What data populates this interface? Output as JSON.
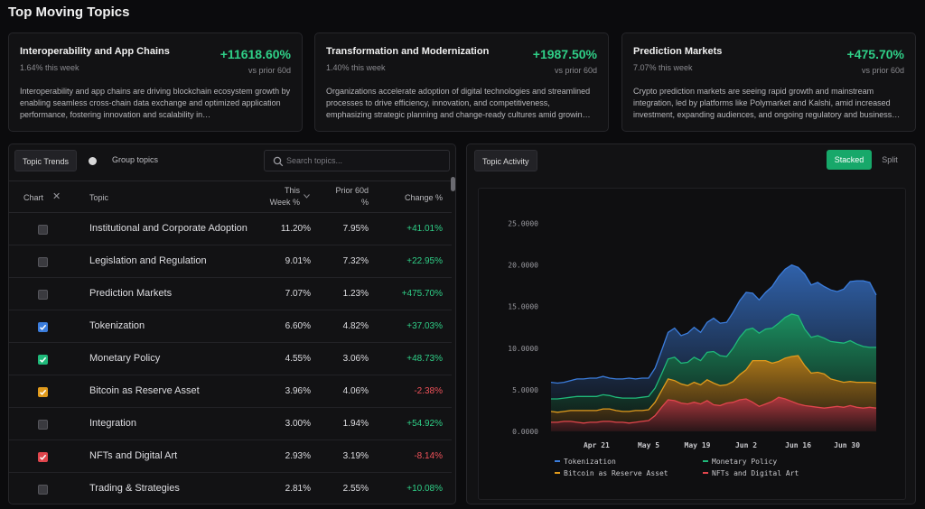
{
  "page": {
    "title": "Top Moving Topics"
  },
  "cards": [
    {
      "title": "Interoperability and App Chains",
      "sub": "1.64% this week",
      "change": "+11618.60%",
      "prior": "vs prior 60d",
      "desc": "Interoperability and app chains are driving blockchain ecosystem growth by enabling seamless cross-chain data exchange and optimized application performance, fostering innovation and scalability in…"
    },
    {
      "title": "Transformation and Modernization",
      "sub": "1.40% this week",
      "change": "+1987.50%",
      "prior": "vs prior 60d",
      "desc": "Organizations accelerate adoption of digital technologies and streamlined processes to drive efficiency, innovation, and competitiveness, emphasizing strategic planning and change-ready cultures amid growin…"
    },
    {
      "title": "Prediction Markets",
      "sub": "7.07% this week",
      "change": "+475.70%",
      "prior": "vs prior 60d",
      "desc": "Crypto prediction markets are seeing rapid growth and mainstream integration, led by platforms like Polymarket and Kalshi, amid increased investment, expanding audiences, and ongoing regulatory and business…"
    }
  ],
  "trends": {
    "tab_label": "Topic Trends",
    "group_label": "Group topics",
    "search_placeholder": "Search topics...",
    "headers": {
      "chart": "Chart",
      "topic": "Topic",
      "this_week_1": "This",
      "this_week_2": "Week %",
      "prior_1": "Prior 60d",
      "prior_2": "%",
      "change": "Change %"
    },
    "rows": [
      {
        "topic": "Institutional and Corporate Adoption",
        "week": "11.20%",
        "prior": "7.95%",
        "change": "+41.01%",
        "checked": false,
        "color": "",
        "dir": "pos"
      },
      {
        "topic": "Legislation and Regulation",
        "week": "9.01%",
        "prior": "7.32%",
        "change": "+22.95%",
        "checked": false,
        "color": "",
        "dir": "pos"
      },
      {
        "topic": "Prediction Markets",
        "week": "7.07%",
        "prior": "1.23%",
        "change": "+475.70%",
        "checked": false,
        "color": "",
        "dir": "pos"
      },
      {
        "topic": "Tokenization",
        "week": "6.60%",
        "prior": "4.82%",
        "change": "+37.03%",
        "checked": true,
        "color": "#3b7ddd",
        "dir": "pos"
      },
      {
        "topic": "Monetary Policy",
        "week": "4.55%",
        "prior": "3.06%",
        "change": "+48.73%",
        "checked": true,
        "color": "#1fb97a",
        "dir": "pos"
      },
      {
        "topic": "Bitcoin as Reserve Asset",
        "week": "3.96%",
        "prior": "4.06%",
        "change": "-2.38%",
        "checked": true,
        "color": "#e09a1c",
        "dir": "neg"
      },
      {
        "topic": "Integration",
        "week": "3.00%",
        "prior": "1.94%",
        "change": "+54.92%",
        "checked": false,
        "color": "",
        "dir": "pos"
      },
      {
        "topic": "NFTs and Digital Art",
        "week": "2.93%",
        "prior": "3.19%",
        "change": "-8.14%",
        "checked": true,
        "color": "#e0454c",
        "dir": "neg"
      },
      {
        "topic": "Trading & Strategies",
        "week": "2.81%",
        "prior": "2.55%",
        "change": "+10.08%",
        "checked": false,
        "color": "",
        "dir": "pos"
      }
    ]
  },
  "activity": {
    "tab_label": "Topic Activity",
    "stacked_label": "Stacked",
    "split_label": "Split"
  },
  "chart_data": {
    "type": "area",
    "stacked": true,
    "x_ticks": [
      "Apr 21",
      "May 5",
      "May 19",
      "Jun 2",
      "Jun 16",
      "Jun 30"
    ],
    "y_ticks": [
      "0.0000",
      "5.0000",
      "10.0000",
      "15.0000",
      "20.0000",
      "25.0000"
    ],
    "ylim": [
      0,
      27
    ],
    "grid": false,
    "legend_position": "bottom",
    "series": [
      {
        "name": "NFTs and Digital Art",
        "color": "#e0454c",
        "values": [
          1.1,
          1.1,
          1.2,
          1.2,
          1.1,
          1.0,
          1.1,
          1.1,
          1.2,
          1.2,
          1.1,
          1.1,
          1.0,
          1.1,
          1.2,
          1.3,
          1.9,
          2.9,
          3.8,
          3.7,
          3.4,
          3.3,
          3.5,
          3.3,
          3.7,
          3.2,
          3.1,
          3.4,
          3.5,
          3.8,
          3.9,
          3.5,
          3.0,
          3.3,
          3.6,
          4.1,
          3.9,
          3.6,
          3.3,
          3.1,
          3.0,
          2.9,
          2.8,
          2.9,
          3.0,
          2.9,
          3.1,
          2.9,
          2.8,
          2.9,
          2.8
        ]
      },
      {
        "name": "Bitcoin as Reserve Asset",
        "color": "#e09a1c",
        "values": [
          1.3,
          1.2,
          1.2,
          1.3,
          1.4,
          1.5,
          1.4,
          1.4,
          1.5,
          1.5,
          1.4,
          1.3,
          1.4,
          1.4,
          1.3,
          1.3,
          1.6,
          2.0,
          2.5,
          2.4,
          2.3,
          2.2,
          2.4,
          2.3,
          2.5,
          2.6,
          2.4,
          2.2,
          2.5,
          3.0,
          3.5,
          5.0,
          5.5,
          5.2,
          4.6,
          4.3,
          4.9,
          5.4,
          5.8,
          4.8,
          4.0,
          4.2,
          4.1,
          3.4,
          3.1,
          3.0,
          2.9,
          3.0,
          3.1,
          3.0,
          3.0
        ]
      },
      {
        "name": "Monetary Policy",
        "color": "#1fb97a",
        "values": [
          1.5,
          1.6,
          1.6,
          1.6,
          1.7,
          1.7,
          1.7,
          1.7,
          1.7,
          1.6,
          1.6,
          1.6,
          1.6,
          1.5,
          1.6,
          1.6,
          1.7,
          2.0,
          2.4,
          2.8,
          2.5,
          2.8,
          3.0,
          2.9,
          3.3,
          3.8,
          3.6,
          3.4,
          4.0,
          4.5,
          4.8,
          3.9,
          3.3,
          3.8,
          4.2,
          4.6,
          4.9,
          5.1,
          4.8,
          4.4,
          4.3,
          4.4,
          4.3,
          4.5,
          4.6,
          4.7,
          4.9,
          4.6,
          4.3,
          4.2,
          4.3
        ]
      },
      {
        "name": "Tokenization",
        "color": "#3b7ddd",
        "values": [
          2.0,
          1.9,
          1.9,
          2.0,
          2.1,
          2.1,
          2.2,
          2.2,
          2.2,
          2.1,
          2.2,
          2.3,
          2.4,
          2.3,
          2.3,
          2.2,
          2.4,
          2.8,
          3.2,
          3.5,
          3.3,
          3.5,
          3.6,
          3.4,
          3.6,
          4.0,
          3.9,
          4.1,
          4.3,
          4.4,
          4.5,
          4.2,
          4.0,
          4.4,
          5.0,
          5.6,
          5.8,
          5.9,
          5.8,
          6.6,
          6.3,
          6.4,
          6.2,
          6.2,
          6.1,
          6.5,
          7.1,
          7.6,
          7.9,
          7.8,
          6.3
        ]
      }
    ]
  }
}
